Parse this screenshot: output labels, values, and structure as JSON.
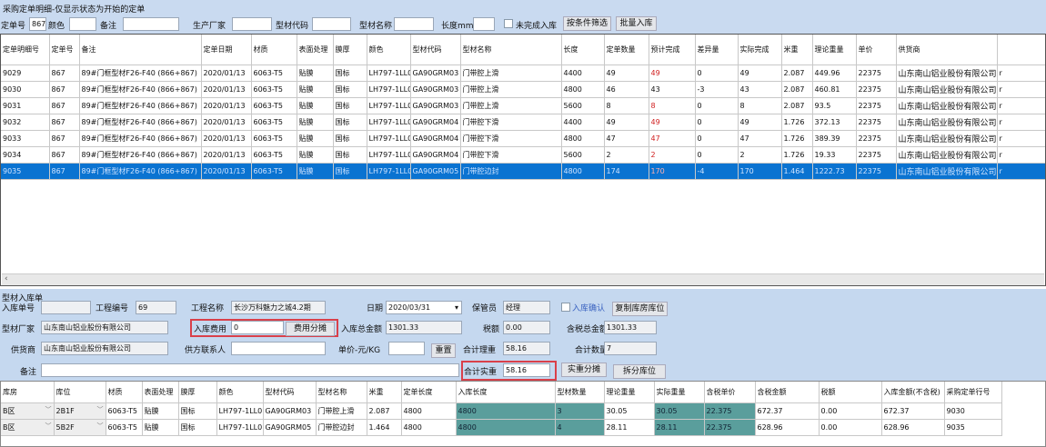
{
  "window": {
    "title": "采购定单明细-仅显示状态为开始的定单"
  },
  "filter": {
    "order_no_label": "定单号",
    "order_no_value": "867",
    "color_label": "颜色",
    "color_value": "",
    "remark_label": "备注",
    "remark_value": "",
    "maker_label": "生产厂家",
    "maker_value": "",
    "code_label": "型材代码",
    "code_value": "",
    "name_label": "型材名称",
    "name_value": "",
    "length_label": "长度mm",
    "length_value": "",
    "incomplete_label": "未完成入库",
    "incomplete_checked": false,
    "filter_button": "按条件筛选",
    "batch_button": "批量入库"
  },
  "order_grid": {
    "columns": [
      "定单明细号",
      "定单号",
      "备注",
      "定单日期",
      "材质",
      "表面处理",
      "膜厚",
      "颜色",
      "型材代码",
      "型材名称",
      "长度",
      "定单数量",
      "预计完成",
      "差异量",
      "实际完成",
      "米重",
      "理论重量",
      "单价",
      "供货商",
      ""
    ],
    "rows": [
      [
        "9029",
        "867",
        "89#门框型材F26-F40 (866+867)",
        "2020/01/13",
        "6063-T5",
        "贴膜",
        "国标",
        "LH797-1LL0",
        "GA90GRM03",
        "门带腔上滑",
        "4400",
        "49",
        "49",
        "0",
        "49",
        "2.087",
        "449.96",
        "22375",
        "山东南山铝业股份有限公司",
        "r"
      ],
      [
        "9030",
        "867",
        "89#门框型材F26-F40 (866+867)",
        "2020/01/13",
        "6063-T5",
        "贴膜",
        "国标",
        "LH797-1LL0",
        "GA90GRM03",
        "门带腔上滑",
        "4800",
        "46",
        "43",
        "-3",
        "43",
        "2.087",
        "460.81",
        "22375",
        "山东南山铝业股份有限公司",
        "r"
      ],
      [
        "9031",
        "867",
        "89#门框型材F26-F40 (866+867)",
        "2020/01/13",
        "6063-T5",
        "贴膜",
        "国标",
        "LH797-1LL0",
        "GA90GRM03",
        "门带腔上滑",
        "5600",
        "8",
        "8",
        "0",
        "8",
        "2.087",
        "93.5",
        "22375",
        "山东南山铝业股份有限公司",
        "r"
      ],
      [
        "9032",
        "867",
        "89#门框型材F26-F40 (866+867)",
        "2020/01/13",
        "6063-T5",
        "贴膜",
        "国标",
        "LH797-1LL0",
        "GA90GRM04",
        "门带腔下滑",
        "4400",
        "49",
        "49",
        "0",
        "49",
        "1.726",
        "372.13",
        "22375",
        "山东南山铝业股份有限公司",
        "r"
      ],
      [
        "9033",
        "867",
        "89#门框型材F26-F40 (866+867)",
        "2020/01/13",
        "6063-T5",
        "贴膜",
        "国标",
        "LH797-1LL0",
        "GA90GRM04",
        "门带腔下滑",
        "4800",
        "47",
        "47",
        "0",
        "47",
        "1.726",
        "389.39",
        "22375",
        "山东南山铝业股份有限公司",
        "r"
      ],
      [
        "9034",
        "867",
        "89#门框型材F26-F40 (866+867)",
        "2020/01/13",
        "6063-T5",
        "贴膜",
        "国标",
        "LH797-1LL0",
        "GA90GRM04",
        "门带腔下滑",
        "5600",
        "2",
        "2",
        "0",
        "2",
        "1.726",
        "19.33",
        "22375",
        "山东南山铝业股份有限公司",
        "r"
      ],
      [
        "9035",
        "867",
        "89#门框型材F26-F40 (866+867)",
        "2020/01/13",
        "6063-T5",
        "贴膜",
        "国标",
        "LH797-1LL0",
        "GA90GRM05",
        "门带腔边封",
        "4800",
        "174",
        "170",
        "-4",
        "170",
        "1.464",
        "1222.73",
        "22375",
        "山东南山铝业股份有限公司",
        "r"
      ]
    ],
    "red_rows": [
      0,
      2,
      3,
      4,
      5,
      6
    ],
    "selected_row": 6
  },
  "receipt": {
    "section_title": "型材入库单",
    "receipt_no_label": "入库单号",
    "receipt_no_value": "",
    "project_no_label": "工程编号",
    "project_no_value": "69",
    "project_name_label": "工程名称",
    "project_name_value": "长沙万科魅力之城4.2期",
    "date_label": "日期",
    "date_value": "2020/03/31",
    "keeper_label": "保管员",
    "keeper_value": "经理",
    "confirm_label": "入库确认",
    "confirm_checked": false,
    "copy_button": "复制库房库位",
    "maker_label": "型材厂家",
    "maker_value": "山东南山铝业股份有限公司",
    "fee_label": "入库费用",
    "fee_value": "0",
    "fee_split_button": "费用分摊",
    "total_label": "入库总金额",
    "total_value": "1301.33",
    "tax_label": "税额",
    "tax_value": "0.00",
    "taxed_total_label": "含税总金额",
    "taxed_total_value": "1301.33",
    "supplier_label": "供货商",
    "supplier_value": "山东南山铝业股份有限公司",
    "contact_label": "供方联系人",
    "contact_value": "",
    "unit_price_label": "单价-元/KG",
    "unit_price_value": "",
    "reset_button": "重置",
    "theory_weight_label": "合计理重",
    "theory_weight_value": "58.16",
    "qty_label": "合计数量",
    "qty_value": "7",
    "remark_label": "备注",
    "remark_value": "",
    "actual_weight_label": "合计实重",
    "actual_weight_value": "58.16",
    "weight_split_button": "实重分摊",
    "split_location_button": "拆分库位"
  },
  "receipt_grid": {
    "columns": [
      "库房",
      "库位",
      "材质",
      "表面处理",
      "膜厚",
      "颜色",
      "型材代码",
      "型材名称",
      "米重",
      "定单长度",
      "入库长度",
      "型材数量",
      "理论重量",
      "实际重量",
      "含税单价",
      "含税金额",
      "税额",
      "入库金额(不含税)",
      "采购定单行号"
    ],
    "rows": [
      [
        "B区",
        "2B1F",
        "6063-T5",
        "贴膜",
        "国标",
        "LH797-1LL0",
        "GA90GRM03",
        "门带腔上滑",
        "2.087",
        "4800",
        "4800",
        "3",
        "30.05",
        "30.05",
        "22.375",
        "672.37",
        "0.00",
        "672.37",
        "9030"
      ],
      [
        "B区",
        "5B2F",
        "6063-T5",
        "贴膜",
        "国标",
        "LH797-1LL0",
        "GA90GRM05",
        "门带腔边封",
        "1.464",
        "4800",
        "4800",
        "4",
        "28.11",
        "28.11",
        "22.375",
        "628.96",
        "0.00",
        "628.96",
        "9035"
      ]
    ]
  },
  "colors": {
    "selected_row": "#0a73d1",
    "panel": "#c5d8ef",
    "editable_cell": "#5a9e9c",
    "highlight_box": "#d9404a",
    "warning_text": "#d02020"
  }
}
